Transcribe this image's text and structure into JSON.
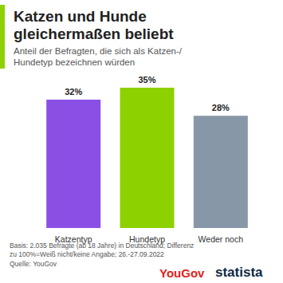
{
  "chart_data": {
    "type": "bar",
    "title": "Katzen und Hunde gleichermaßen beliebt",
    "subtitle": "Anteil der Befragten, die sich als Katzen-/Hundetyp bezeichnen würden",
    "categories": [
      "Katzentyp",
      "Hundetyp",
      "Weder noch"
    ],
    "values": [
      32,
      35,
      28
    ],
    "value_labels": [
      "32%",
      "35%",
      "28%"
    ],
    "colors": [
      "#8b4fe6",
      "#8ed100",
      "#8797a8"
    ],
    "ylim": [
      0,
      35
    ],
    "data_labels": true,
    "tick_labels": "x",
    "grid": false,
    "footnote": "Basis: 2.035 Befragte (ab 18 Jahre) in Deutschland; Differenz zu 100%=Weiß nicht/keine Angabe; 26.-27.09.2022",
    "source": "Quelle: YouGov",
    "logos": [
      "YouGov",
      "statista"
    ]
  }
}
